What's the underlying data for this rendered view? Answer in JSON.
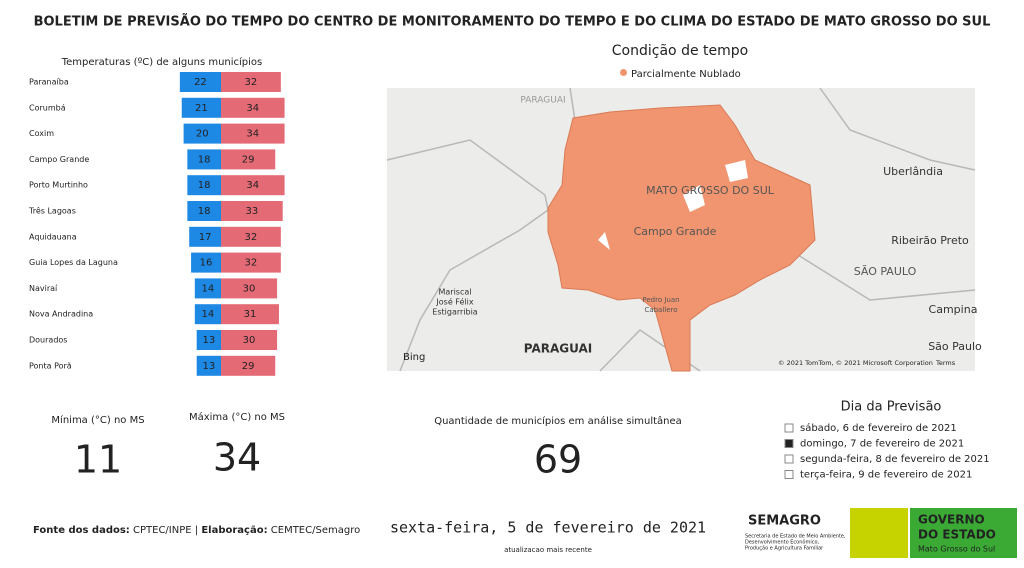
{
  "header": {
    "title": "BOLETIM DE PREVISÃO DO TEMPO DO CENTRO DE MONITORAMENTO DO TEMPO E DO CLIMA DO ESTADO DE MATO GROSSO DO SUL"
  },
  "chart_data": {
    "type": "bar",
    "title": "Temperaturas (ºC) de alguns municípios",
    "categories": [
      "Paranaíba",
      "Corumbá",
      "Coxim",
      "Campo Grande",
      "Porto Murtinho",
      "Três Lagoas",
      "Aquidauana",
      "Guia Lopes da Laguna",
      "Naviraí",
      "Nova Andradina",
      "Dourados",
      "Ponta Porã"
    ],
    "series": [
      {
        "color": "#1e88e5",
        "values": [
          22,
          21,
          20,
          18,
          18,
          18,
          17,
          16,
          14,
          14,
          13,
          13
        ]
      },
      {
        "color": "#e46a76",
        "values": [
          32,
          34,
          34,
          29,
          34,
          33,
          32,
          32,
          30,
          31,
          30,
          29
        ]
      }
    ]
  },
  "map": {
    "title": "Condição de tempo",
    "legend": "Parcialmente Nublado",
    "legend_color": "#f0956f",
    "labels": [
      "PARAGUAI",
      "MATO GROSSO DO SUL",
      "Campo Grande",
      "Uberlândia",
      "Ribeirão Preto",
      "SÃO PAULO",
      "Campina",
      "São Paulo",
      "Mariscal",
      "José Félix",
      "Estigarribia",
      "PARAGUAI",
      "Pedro Juan",
      "Caballero"
    ],
    "bing": "Bing",
    "copyright": "© 2021 TomTom, © 2021 Microsoft Corporation",
    "terms": "Terms"
  },
  "kpis": [
    {
      "label": "Mínima (°C) no MS",
      "value": 11
    },
    {
      "label": "Máxima (°C) no MS",
      "value": 34
    },
    {
      "label": "Quantidade de municípios em análise simultânea",
      "value": 69
    }
  ],
  "days": {
    "title": "Dia da Previsão",
    "options": [
      "sábado, 6 de fevereiro de 2021",
      "domingo, 7 de fevereiro de 2021",
      "segunda-feira, 8 de fevereiro de 2021",
      "terça-feira, 9 de fevereiro de 2021"
    ],
    "selected": 1
  },
  "footer": {
    "source_label": "Fonte dos dados:",
    "source": "CPTEC/INPE |",
    "author_label": "Elaboração:",
    "author": "CEMTEC/Semagro",
    "date": "sexta-feira, 5 de fevereiro de 2021",
    "updated": "atualizacao mais recente"
  },
  "logos": {
    "semagro": "SEMAGRO",
    "semagro_sub": [
      "Secretaria de Estado de Meio Ambiente,",
      "Desenvolvimento Econômico,",
      "Produção e Agricultura Familiar"
    ],
    "gov": [
      "GOVERNO",
      "DO ESTADO"
    ],
    "gov_sub": "Mato Grosso do Sul"
  }
}
